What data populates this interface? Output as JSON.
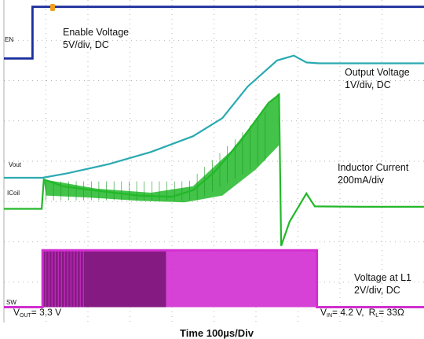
{
  "chart_data": {
    "type": "line",
    "title": "",
    "xlabel": "Time 100µs/Div",
    "x_divisions": 10,
    "y_divisions": 8,
    "grid": true,
    "colors": {
      "enable": "#1c2f9c",
      "output": "#2aaab0",
      "inductor": "#22b829",
      "sw": "#d22ed0",
      "sw_dense": "#6a0f66",
      "trigger": "#f0a020",
      "grid": "#9a9a9a"
    },
    "markers": {
      "en": "EN",
      "vout": "Vout",
      "icoil": "ICoil",
      "sw": "SW"
    },
    "series": [
      {
        "name": "Enable Voltage",
        "scale": "5V/div, DC",
        "points": [
          [
            0,
            1.45
          ],
          [
            0.68,
            1.45
          ],
          [
            0.68,
            0.17
          ],
          [
            10,
            0.17
          ]
        ]
      },
      {
        "name": "Output Voltage",
        "scale": "1V/div, DC",
        "points": [
          [
            0,
            4.41
          ],
          [
            0.92,
            4.41
          ],
          [
            1.5,
            4.3
          ],
          [
            2.5,
            4.07
          ],
          [
            3.5,
            3.77
          ],
          [
            4.5,
            3.38
          ],
          [
            5.2,
            2.93
          ],
          [
            5.8,
            2.15
          ],
          [
            6.5,
            1.5
          ],
          [
            6.9,
            1.38
          ],
          [
            7.2,
            1.55
          ],
          [
            7.5,
            1.57
          ],
          [
            8.5,
            1.57
          ],
          [
            10,
            1.57
          ]
        ]
      },
      {
        "name": "Inductor Current",
        "scale": "200mA/div",
        "points": [
          [
            0,
            5.18
          ],
          [
            0.9,
            5.18
          ],
          [
            0.95,
            4.45
          ],
          [
            1.4,
            4.62
          ],
          [
            2.2,
            4.73
          ],
          [
            3.2,
            4.85
          ],
          [
            4.0,
            4.88
          ],
          [
            4.5,
            4.72
          ],
          [
            5.0,
            4.28
          ],
          [
            5.6,
            3.55
          ],
          [
            6.3,
            2.55
          ],
          [
            6.55,
            2.35
          ],
          [
            6.6,
            6.1
          ],
          [
            6.8,
            5.5
          ],
          [
            7.2,
            4.8
          ],
          [
            7.4,
            5.12
          ],
          [
            8.5,
            5.13
          ],
          [
            10,
            5.13
          ]
        ]
      },
      {
        "name": "Voltage at L1",
        "scale": "2V/div, DC",
        "points": [
          [
            0,
            7.62
          ],
          [
            0.92,
            7.62
          ],
          [
            0.92,
            6.21
          ],
          [
            7.45,
            6.21
          ],
          [
            7.45,
            7.62
          ],
          [
            10,
            7.62
          ]
        ]
      }
    ],
    "conditions": {
      "vout_label": "V",
      "vout_sub": "OUT",
      "vout_value": "= 3.3 V",
      "vin_label": "V",
      "vin_sub": "IN",
      "vin_value": "= 4.2 V,",
      "rl_label": "R",
      "rl_sub": "L",
      "rl_value": "= 33Ω"
    }
  }
}
